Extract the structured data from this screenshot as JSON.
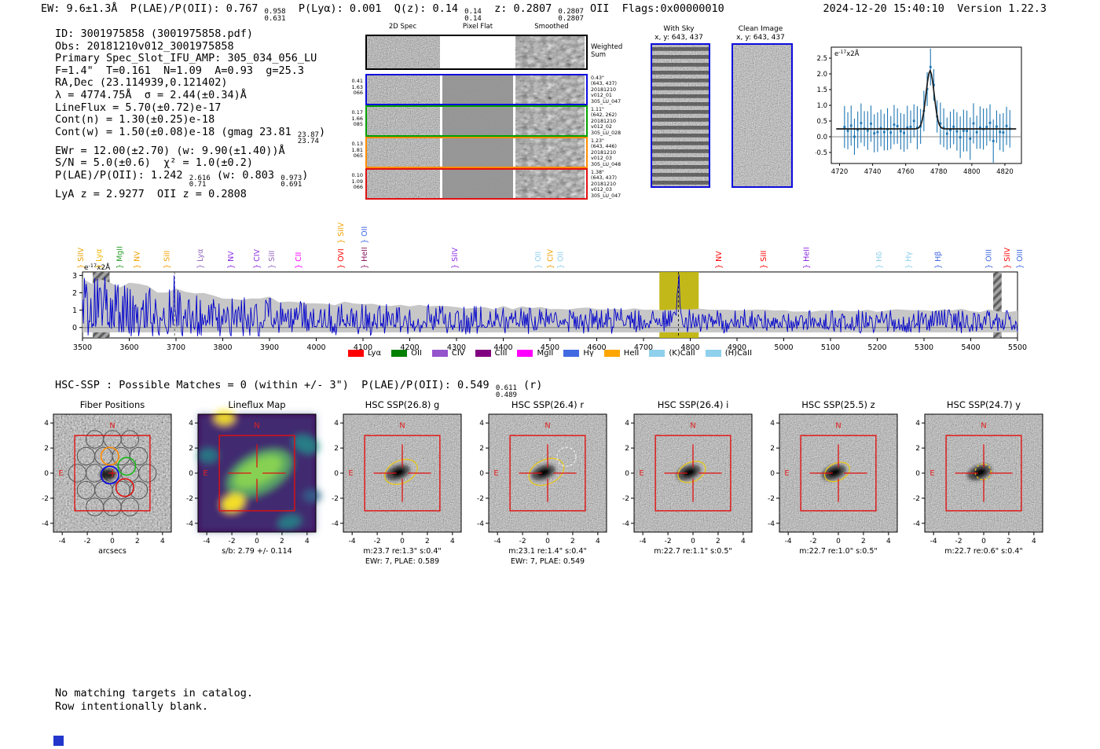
{
  "header": {
    "left_segments": [
      {
        "t": "EW: 9.6±1.3Å  P(LAE)/P(OII): 0.767 "
      },
      {
        "hi": "0.958",
        "lo": "0.631"
      },
      {
        "t": "  P(Lyα): 0.001  Q(z): 0.14 "
      },
      {
        "hi": "0.14",
        "lo": "0.14"
      },
      {
        "t": "  z: 0.2807 "
      },
      {
        "hi": "0.2807",
        "lo": "0.2807"
      },
      {
        "t": " OII  Flags:0x00000010"
      }
    ],
    "timestamp": "2024-12-20 15:40:10",
    "version": "Version 1.22.3"
  },
  "info_block": {
    "lines": [
      [
        {
          "t": "ID: 3001975858 (3001975858.pdf)"
        }
      ],
      [
        {
          "t": "Obs: 20181210v012_3001975858"
        }
      ],
      [
        {
          "t": "Primary Spec_Slot_IFU_AMP: 305_034_056_LU"
        }
      ],
      [
        {
          "t": "F=1.4\"  T=0.161  N=1.09  A=0.93  g=25.3"
        }
      ],
      [
        {
          "t": "RA,Dec (23.114939,0.121402)"
        }
      ],
      [
        {
          "t": "λ = 4774.75Å  σ = 2.44(±0.34)Å"
        }
      ],
      [
        {
          "t": "LineFlux = 5.70(±0.72)e-17"
        }
      ],
      [
        {
          "t": "Cont(n) = 1.30(±0.25)e-18"
        }
      ],
      [
        {
          "t": "Cont(w) = 1.50(±0.08)e-18 (gmag 23.81 "
        },
        {
          "hi": "23.87",
          "lo": "23.74"
        },
        {
          "t": ")"
        }
      ],
      [
        {
          "t": "EWr = 12.00(±2.70) (w: 9.90(±1.40))Å"
        }
      ],
      [
        {
          "t": "S/N = 5.0(±0.6)  χ² = 1.0(±0.2)"
        }
      ],
      [
        {
          "t": "P(LAE)/P(OII): 1.242 "
        },
        {
          "hi": "2.616",
          "lo": "0.71"
        },
        {
          "t": " (w: 0.803 "
        },
        {
          "hi": "0.973",
          "lo": "0.691"
        },
        {
          "t": ")"
        }
      ],
      [
        {
          "t": "LyA z = 2.9277  OII z = 0.2808"
        }
      ]
    ]
  },
  "cutouts2d": {
    "col_headers": [
      "2D Spec",
      "Pixel Flat",
      "Smoothed"
    ],
    "rows": [
      {
        "border": "#000000",
        "left": [],
        "right": [
          "Weighted",
          "Sum"
        ],
        "flat": "white",
        "weighted": true
      },
      {
        "border": "#0b0bdf",
        "left": [
          "0.41",
          "1.63",
          "066"
        ],
        "right": [
          "0.43\"",
          "(643, 437)",
          "20181210",
          "v012_01",
          "305_LU_047"
        ],
        "flat": "gray"
      },
      {
        "border": "#00a000",
        "left": [
          "0.17",
          "1.66",
          "085"
        ],
        "right": [
          "1.11\"",
          "(642, 262)",
          "20181210",
          "v012_02",
          "305_LU_028"
        ],
        "flat": "gray"
      },
      {
        "border": "#ff8c00",
        "left": [
          "0.13",
          "1.81",
          "065"
        ],
        "right": [
          "1.23\"",
          "(643, 446)",
          "20181210",
          "v012_03",
          "305_LU_048"
        ],
        "flat": "gray"
      },
      {
        "border": "#e01010",
        "left": [
          "0.10",
          "1.09",
          "066"
        ],
        "right": [
          "1.38\"",
          "(643, 437)",
          "20181210",
          "v012_03",
          "305_LU_047"
        ],
        "flat": "gray"
      }
    ]
  },
  "sky_panels": [
    {
      "title": "With Sky",
      "subtitle": "x, y: 643, 437",
      "style": "striped"
    },
    {
      "title": "Clean Image",
      "subtitle": "x, y: 643, 437",
      "style": "noise"
    }
  ],
  "chart_data": [
    {
      "id": "line_fit_zoom",
      "type": "scatter",
      "title": "emission line gaussian fit (zoomed)",
      "unit_label": {
        "base": "e",
        "exp": "-17",
        "suffix": "x2Å"
      },
      "xlim": [
        4715,
        4830
      ],
      "ylim": [
        -0.85,
        2.85
      ],
      "x_ticks": [
        4720,
        4740,
        4760,
        4780,
        4800,
        4820
      ],
      "y_ticks": [
        "-0.5",
        "0.0",
        "0.5",
        "1.0",
        "1.5",
        "2.0",
        "2.5"
      ],
      "gaussian_fit": {
        "center": 4774.75,
        "sigma": 2.44,
        "amplitude": 1.85,
        "continuum": 0.25,
        "peak": 2.1
      },
      "points": {
        "x_start": 4723,
        "x_step": 2,
        "count": 51,
        "noise_sigma": 0.28,
        "err_base": 0.5,
        "err_spread": 0.2,
        "seed": 11
      },
      "data_color": "#1f77b4",
      "fit_color": "#1a1a1a",
      "grid": false
    },
    {
      "id": "full_spectrum",
      "type": "line",
      "title": "full 1D spectrum",
      "unit_label": {
        "base": "e",
        "exp": "-17",
        "suffix": "x2Å"
      },
      "xlim": [
        3500,
        5500
      ],
      "ylim": [
        -0.6,
        3.2
      ],
      "x_ticks": [
        3500,
        3600,
        3700,
        3800,
        3900,
        4000,
        4100,
        4200,
        4300,
        4400,
        4500,
        4600,
        4700,
        4800,
        4900,
        5000,
        5100,
        5200,
        5300,
        5400,
        5500
      ],
      "y_ticks": [
        0,
        1,
        2,
        3
      ],
      "series_color": "#0000cc",
      "noise_envelope": {
        "start": 2.8,
        "floor": 0.95,
        "decay_scale": 380,
        "fill": "#c7c7c7"
      },
      "emission_line": {
        "wavelength": 4774.75,
        "peak": 2.4,
        "sigma": 3.0
      },
      "extra_spikes": [
        [
          3504,
          2.85
        ],
        [
          3548,
          2.9
        ],
        [
          3696,
          3.0
        ]
      ],
      "highlight_band": {
        "x0": 4734,
        "x1": 4818,
        "color": "#bdb000"
      },
      "dashed_marker_x": 3697,
      "hatched_bands": [
        [
          3522,
          3558
        ],
        [
          5448,
          5466
        ]
      ],
      "seed": 5,
      "legend": [
        {
          "label": "Lyα",
          "color": "#ff0000"
        },
        {
          "label": "OII",
          "color": "#008000"
        },
        {
          "label": "CIV",
          "color": "#9354cc"
        },
        {
          "label": "CIII",
          "color": "#800080"
        },
        {
          "label": "MgII",
          "color": "#ff00ff"
        },
        {
          "label": "Hγ",
          "color": "#4169e1"
        },
        {
          "label": "HeII",
          "color": "#ffa500"
        },
        {
          "label": "(K)CaII",
          "color": "#8fd0ec"
        },
        {
          "label": "(H)CaII",
          "color": "#8fd0ec"
        }
      ],
      "line_labels": [
        {
          "wl": 3502,
          "label": "SiIV",
          "color": "#e8a000",
          "tier": 0
        },
        {
          "wl": 3540,
          "label": "Lyα",
          "color": "#f0b400",
          "tier": 0
        },
        {
          "wl": 3585,
          "label": "MgII",
          "color": "#2ca02c",
          "tier": 0
        },
        {
          "wl": 3622,
          "label": "NV",
          "color": "#f0a000",
          "tier": 0
        },
        {
          "wl": 3686,
          "label": "SiII",
          "color": "#f0a000",
          "tier": 0
        },
        {
          "wl": 3757,
          "label": "Lyα",
          "color": "#9467bd",
          "tier": 0
        },
        {
          "wl": 3823,
          "label": "NV",
          "color": "#8a2be2",
          "tier": 0
        },
        {
          "wl": 3878,
          "label": "CIV",
          "color": "#8a2be2",
          "tier": 0
        },
        {
          "wl": 3910,
          "label": "SiII",
          "color": "#9467bd",
          "tier": 0
        },
        {
          "wl": 3967,
          "label": "CII",
          "color": "#ff00ff",
          "tier": 0
        },
        {
          "wl": 4058,
          "label": "OVI",
          "color": "#ff0000",
          "tier": 0
        },
        {
          "wl": 4058,
          "label": "SiIV",
          "color": "#f0a000",
          "tier": 1
        },
        {
          "wl": 4108,
          "label": "HeII",
          "color": "#8b1a62",
          "tier": 0
        },
        {
          "wl": 4108,
          "label": "OII",
          "color": "#4169e1",
          "tier": 1
        },
        {
          "wl": 4302,
          "label": "SiIV",
          "color": "#8a2be2",
          "tier": 0
        },
        {
          "wl": 4480,
          "label": "OII",
          "color": "#8fd0ec",
          "tier": 0
        },
        {
          "wl": 4506,
          "label": "CIV",
          "color": "#f0a000",
          "tier": 0
        },
        {
          "wl": 4528,
          "label": "OII",
          "color": "#8fd0ec",
          "tier": 0
        },
        {
          "wl": 4866,
          "label": "NV",
          "color": "#ff0000",
          "tier": 0
        },
        {
          "wl": 4962,
          "label": "SiII",
          "color": "#ff0000",
          "tier": 0
        },
        {
          "wl": 5054,
          "label": "HeII",
          "color": "#8a2be2",
          "tier": 0
        },
        {
          "wl": 5209,
          "label": "Hδ",
          "color": "#8fd0ec",
          "tier": 0
        },
        {
          "wl": 5272,
          "label": "Hγ",
          "color": "#8fd0ec",
          "tier": 0
        },
        {
          "wl": 5335,
          "label": "Hβ",
          "color": "#4169e1",
          "tier": 0
        },
        {
          "wl": 5444,
          "label": "OIII",
          "color": "#4169e1",
          "tier": 0
        },
        {
          "wl": 5483,
          "label": "SiIV",
          "color": "#ff0000",
          "tier": 0
        },
        {
          "wl": 5510,
          "label": "OIII",
          "color": "#4169e1",
          "tier": 0
        }
      ]
    }
  ],
  "hsc_line": {
    "segments": [
      {
        "t": "HSC-SSP : Possible Matches = 0 (within +/- 3\")  P(LAE)/P(OII): 0.549 "
      },
      {
        "hi": "0.611",
        "lo": "0.489"
      },
      {
        "t": " (r)"
      }
    ]
  },
  "panels": [
    {
      "title": "Fiber Positions",
      "type": "fiber",
      "caption1": "arcsecs",
      "caption2": ""
    },
    {
      "title": "Lineflux Map",
      "type": "lineflux",
      "caption1": "s/b: 2.79 +/- 0.114",
      "caption2": ""
    },
    {
      "title": "HSC SSP(26.8) g",
      "type": "hsc",
      "caption1": "m:23.7  re:1.3\"  s:0.4\"",
      "caption2": "EWr: 7, PLAE: 0.589",
      "re_arcsec": 1.3,
      "ellipse": "solid"
    },
    {
      "title": "HSC SSP(26.4) r",
      "type": "hsc",
      "caption1": "m:23.1  re:1.4\"  s:0.4\"",
      "caption2": "EWr: 7, PLAE: 0.549",
      "re_arcsec": 1.4,
      "ellipse": "solid",
      "extra_white_circle": true
    },
    {
      "title": "HSC SSP(26.4) i",
      "type": "hsc",
      "caption1": "m:22.7  re:1.1\"  s:0.5\"",
      "caption2": "",
      "re_arcsec": 1.1,
      "ellipse": "solid"
    },
    {
      "title": "HSC SSP(25.5) z",
      "type": "hsc",
      "caption1": "m:22.7  re:1.0\"  s:0.5\"",
      "caption2": "",
      "re_arcsec": 1.0,
      "ellipse": "solid"
    },
    {
      "title": "HSC SSP(24.7) y",
      "type": "hsc",
      "caption1": "m:22.7  re:0.6\"  s:0.4\"",
      "caption2": "",
      "re_arcsec": 0.6,
      "ellipse": "dashed"
    }
  ],
  "panel_axes": {
    "x_ticks": [
      -4,
      -2,
      0,
      2,
      4
    ],
    "y_ticks": [
      4,
      2,
      0,
      -2,
      -4
    ],
    "north": "N",
    "east": "E"
  },
  "footer_lines": [
    "No matching targets in catalog.",
    "Row intentionally blank."
  ],
  "colors": {
    "compass_red": "#e02020",
    "box_red": "#e01010",
    "ellipse_yellow": "#e8c81e",
    "panel_border_blue": "#0b0bdf",
    "spectrum_blue": "#0000cc",
    "data_point_blue": "#1f77b4",
    "highlight_yellow": "#bdb000",
    "envelope_gray": "#c7c7c7"
  }
}
